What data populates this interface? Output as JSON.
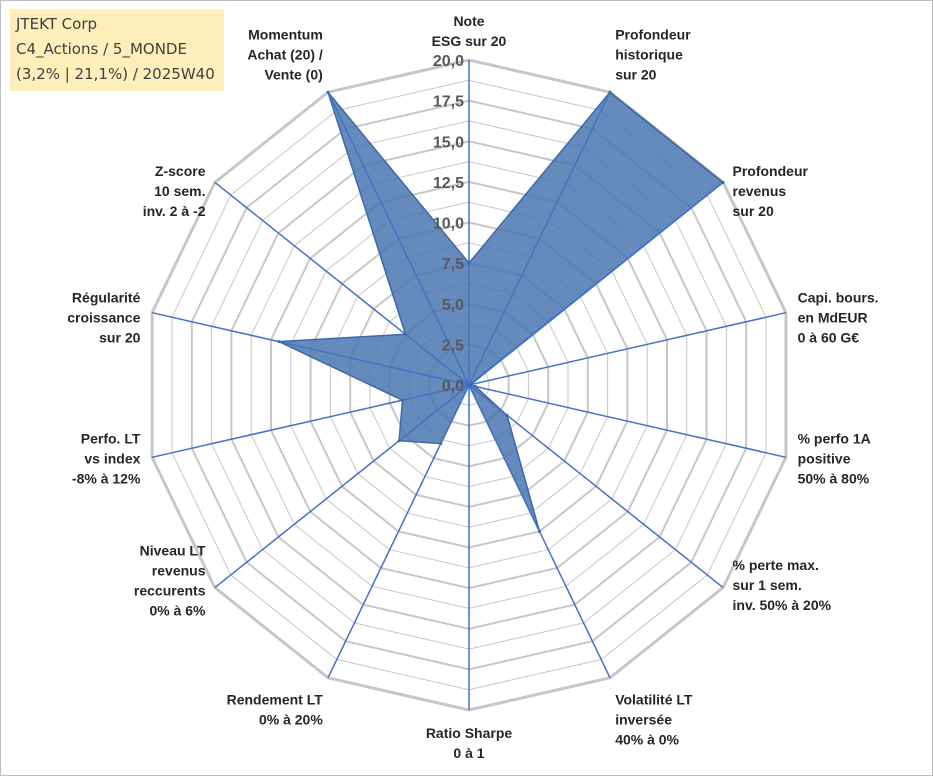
{
  "title_box": {
    "line1": "JTEKT Corp",
    "line2": "C4_Actions / 5_MONDE",
    "line3": "(3,2% | 21,1%) / 2025W40"
  },
  "chart_data": {
    "type": "radar",
    "r_min": 0,
    "r_max": 20,
    "tick_values": [
      0,
      2.5,
      5,
      7.5,
      10,
      12.5,
      15,
      17.5,
      20
    ],
    "tick_labels": [
      "0,0",
      "2,5",
      "5,0",
      "7,5",
      "10,0",
      "12,5",
      "15,0",
      "17,5",
      "20,0"
    ],
    "axes": [
      {
        "label": [
          "Note",
          "ESG sur 20"
        ],
        "value": 7.5
      },
      {
        "label": [
          "Profondeur",
          "historique",
          "sur 20"
        ],
        "value": 20
      },
      {
        "label": [
          "Profondeur",
          "revenus",
          "sur 20"
        ],
        "value": 20
      },
      {
        "label": [
          "Capi. bours.",
          "en MdEUR",
          "0 à 60 G€"
        ],
        "value": 0.1
      },
      {
        "label": [
          "% perfo 1A",
          "positive",
          "50% à 80%"
        ],
        "value": 0.4
      },
      {
        "label": [
          "% perte max.",
          "sur 1 sem.",
          "inv. 50% à 20%"
        ],
        "value": 3.0
      },
      {
        "label": [
          "Volatilité LT",
          "inversée",
          "40% à 0%"
        ],
        "value": 10.0
      },
      {
        "label": [
          "Ratio Sharpe",
          "0 à 1"
        ],
        "value": 0
      },
      {
        "label": [
          "Rendement LT",
          "0% à 20%"
        ],
        "value": 4.0
      },
      {
        "label": [
          "Niveau LT",
          "revenus",
          "reccurents",
          "0% à 6%"
        ],
        "value": 5.5
      },
      {
        "label": [
          "Perfo. LT",
          "vs index",
          "-8% à 12%"
        ],
        "value": 4.2
      },
      {
        "label": [
          "Régularité",
          "croissance",
          "sur 20"
        ],
        "value": 12.0
      },
      {
        "label": [
          "Z-score",
          "10 sem.",
          "inv. 2 à -2"
        ],
        "value": 5.0
      },
      {
        "label": [
          "Momentum",
          "Achat (20) /",
          "Vente (0)"
        ],
        "value": 20
      }
    ],
    "series": [
      {
        "name": "JTEKT Corp",
        "color": "#4a76b0"
      }
    ],
    "grid_color": "#c7c7c7",
    "axis_color": "#4472c4"
  }
}
